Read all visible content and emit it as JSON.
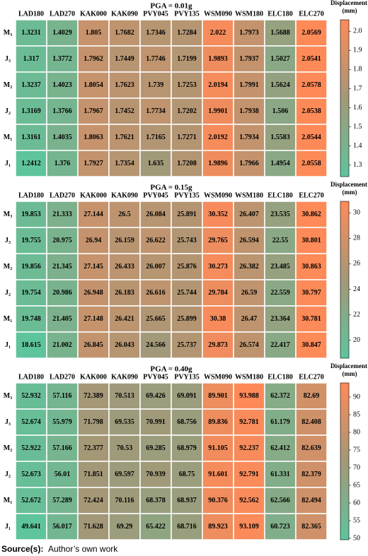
{
  "chart_data": [
    {
      "type": "heatmap",
      "title": "PGA = 0.01g",
      "columns": [
        "LAD180",
        "LAD270",
        "KAK000",
        "KAK090",
        "PVY045",
        "PVY135",
        "WSM090",
        "WSM180",
        "ELC180",
        "ELC270"
      ],
      "rows": [
        "M₃",
        "J₃",
        "M₂",
        "J₂",
        "M₁",
        "J₁"
      ],
      "values": [
        [
          1.3231,
          1.4029,
          1.805,
          1.7682,
          1.7346,
          1.7284,
          2.022,
          1.7973,
          1.5688,
          2.0569
        ],
        [
          1.317,
          1.3772,
          1.7962,
          1.7449,
          1.7746,
          1.7199,
          1.9893,
          1.7937,
          1.5027,
          2.0541
        ],
        [
          1.3237,
          1.4023,
          1.8054,
          1.7623,
          1.739,
          1.7253,
          2.0194,
          1.7991,
          1.5624,
          2.0578
        ],
        [
          1.3169,
          1.3766,
          1.7967,
          1.7452,
          1.7734,
          1.7202,
          1.9901,
          1.7938,
          1.506,
          2.0538
        ],
        [
          1.3161,
          1.4035,
          1.8063,
          1.7621,
          1.7165,
          1.7271,
          2.0192,
          1.7934,
          1.5583,
          2.0544
        ],
        [
          1.2412,
          1.376,
          1.7927,
          1.7354,
          1.635,
          1.7208,
          1.9896,
          1.7966,
          1.4954,
          2.0558
        ]
      ],
      "zlim": [
        1.24,
        2.06
      ],
      "zticks": [
        1.3,
        1.4,
        1.5,
        1.6,
        1.7,
        1.8,
        1.9,
        {
          "value": 2,
          "label": "2.0"
        }
      ],
      "colorbar_label": [
        "Displacement",
        "(mm)"
      ],
      "colormap": [
        "#5ec49c",
        "#a39878",
        "#ff8a58"
      ]
    },
    {
      "type": "heatmap",
      "title": "PGA = 0.15g",
      "columns": [
        "LAD180",
        "LAD270",
        "KAK000",
        "KAK090",
        "PVY045",
        "PVY135",
        "WSM090",
        "WSM180",
        "ELC180",
        "ELC270"
      ],
      "rows": [
        "M₃",
        "J₃",
        "M₂",
        "J₂",
        "M₁",
        "J₁"
      ],
      "values": [
        [
          19.853,
          21.333,
          27.144,
          26.5,
          26.084,
          25.891,
          30.352,
          26.407,
          23.535,
          30.862
        ],
        [
          19.755,
          20.975,
          26.94,
          26.159,
          26.622,
          25.743,
          29.765,
          26.594,
          22.55,
          30.801
        ],
        [
          19.856,
          21.345,
          27.145,
          26.433,
          26.007,
          25.876,
          30.273,
          26.382,
          23.485,
          30.863
        ],
        [
          19.754,
          20.986,
          26.948,
          26.183,
          26.616,
          25.744,
          29.784,
          26.59,
          22.559,
          30.797
        ],
        [
          19.748,
          21.405,
          27.148,
          26.421,
          25.665,
          25.899,
          30.38,
          26.47,
          23.364,
          30.781
        ],
        [
          18.615,
          21.002,
          26.845,
          26.043,
          24.566,
          25.737,
          29.873,
          26.574,
          22.417,
          30.847
        ]
      ],
      "zlim": [
        18.6,
        30.9
      ],
      "zticks": [
        20,
        22,
        24,
        26,
        28,
        30
      ],
      "colorbar_label": [
        "Displacement",
        "(mm)"
      ],
      "colormap": [
        "#5ec49c",
        "#a39878",
        "#ff8a58"
      ]
    },
    {
      "type": "heatmap",
      "title": "PGA = 0.40g",
      "columns": [
        "LAD180",
        "LAD270",
        "KAK000",
        "KAK090",
        "PVY045",
        "PVY135",
        "WSM090",
        "WSM180",
        "ELC180",
        "ELC270"
      ],
      "rows": [
        "M₃",
        "J₃",
        "M₂",
        "J₂",
        "M₁",
        "J₁"
      ],
      "values": [
        [
          52.932,
          57.116,
          72.389,
          70.513,
          69.426,
          69.091,
          89.901,
          93.988,
          62.372,
          82.69
        ],
        [
          52.674,
          55.979,
          71.798,
          69.535,
          70.991,
          68.756,
          89.836,
          92.781,
          61.179,
          82.408
        ],
        [
          52.922,
          57.166,
          72.377,
          70.53,
          69.285,
          68.979,
          91.105,
          92.237,
          62.412,
          82.639
        ],
        [
          52.673,
          56.01,
          71.851,
          69.597,
          70.939,
          68.75,
          91.601,
          92.791,
          61.331,
          82.379
        ],
        [
          52.672,
          57.289,
          72.424,
          70.116,
          68.378,
          68.937,
          90.376,
          92.562,
          62.566,
          82.494
        ],
        [
          49.641,
          56.017,
          71.628,
          69.29,
          65.422,
          68.716,
          89.923,
          93.109,
          60.723,
          82.365
        ]
      ],
      "zlim": [
        49.6,
        94
      ],
      "zticks": [
        50,
        55,
        60,
        65,
        70,
        75,
        80,
        85,
        90
      ],
      "colorbar_label": [
        "Displacement",
        "(mm)"
      ],
      "colormap": [
        "#5ec49c",
        "#a39878",
        "#ff8a58"
      ]
    }
  ],
  "source": {
    "label": "Source(s):",
    "text": "Author’s own work"
  }
}
